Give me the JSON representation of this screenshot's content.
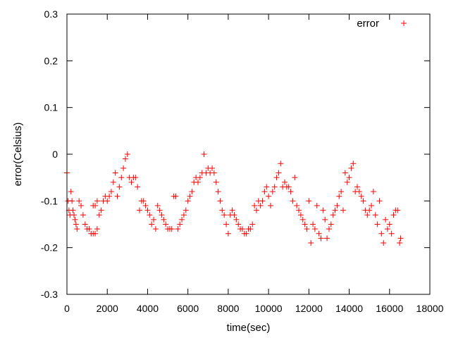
{
  "chart_data": {
    "type": "scatter",
    "title": "",
    "xlabel": "time(sec)",
    "ylabel": "error(Celsius)",
    "xlim": [
      0,
      18000
    ],
    "ylim": [
      -0.3,
      0.3
    ],
    "grid": false,
    "legend_position": "top-right",
    "x_ticks": [
      "0",
      "2000",
      "4000",
      "6000",
      "8000",
      "10000",
      "12000",
      "14000",
      "16000",
      "18000"
    ],
    "y_ticks": [
      "0.3",
      "0.2",
      "0.1",
      "0",
      "-0.1",
      "-0.2",
      "-0.3"
    ],
    "marker_color": "#ff0000",
    "series": [
      {
        "name": "error",
        "marker": "+",
        "points": [
          [
            0,
            -0.04
          ],
          [
            50,
            -0.1
          ],
          [
            100,
            -0.12
          ],
          [
            150,
            -0.13
          ],
          [
            200,
            -0.08
          ],
          [
            250,
            -0.1
          ],
          [
            300,
            -0.12
          ],
          [
            350,
            -0.13
          ],
          [
            400,
            -0.14
          ],
          [
            450,
            -0.15
          ],
          [
            500,
            -0.16
          ],
          [
            600,
            -0.1
          ],
          [
            700,
            -0.11
          ],
          [
            800,
            -0.13
          ],
          [
            900,
            -0.15
          ],
          [
            1000,
            -0.16
          ],
          [
            1100,
            -0.16
          ],
          [
            1200,
            -0.17
          ],
          [
            1300,
            -0.17
          ],
          [
            1400,
            -0.17
          ],
          [
            1500,
            -0.16
          ],
          [
            1300,
            -0.11
          ],
          [
            1400,
            -0.11
          ],
          [
            1500,
            -0.1
          ],
          [
            1600,
            -0.13
          ],
          [
            1700,
            -0.12
          ],
          [
            1800,
            -0.1
          ],
          [
            1900,
            -0.09
          ],
          [
            2000,
            -0.1
          ],
          [
            2100,
            -0.09
          ],
          [
            2200,
            -0.08
          ],
          [
            2300,
            -0.06
          ],
          [
            2400,
            -0.04
          ],
          [
            2500,
            -0.09
          ],
          [
            2600,
            -0.07
          ],
          [
            2700,
            -0.05
          ],
          [
            2800,
            -0.03
          ],
          [
            2900,
            -0.01
          ],
          [
            3000,
            0.0
          ],
          [
            3100,
            -0.05
          ],
          [
            3200,
            -0.06
          ],
          [
            3300,
            -0.05
          ],
          [
            3400,
            -0.05
          ],
          [
            3500,
            -0.07
          ],
          [
            3600,
            -0.12
          ],
          [
            3700,
            -0.1
          ],
          [
            3800,
            -0.1
          ],
          [
            3900,
            -0.11
          ],
          [
            4000,
            -0.12
          ],
          [
            4100,
            -0.13
          ],
          [
            4200,
            -0.15
          ],
          [
            4300,
            -0.14
          ],
          [
            4400,
            -0.16
          ],
          [
            4500,
            -0.11
          ],
          [
            4600,
            -0.12
          ],
          [
            4700,
            -0.13
          ],
          [
            4800,
            -0.14
          ],
          [
            4900,
            -0.15
          ],
          [
            5000,
            -0.16
          ],
          [
            5100,
            -0.16
          ],
          [
            5200,
            -0.16
          ],
          [
            5300,
            -0.09
          ],
          [
            5400,
            -0.09
          ],
          [
            5500,
            -0.16
          ],
          [
            5600,
            -0.15
          ],
          [
            5700,
            -0.14
          ],
          [
            5800,
            -0.13
          ],
          [
            5900,
            -0.12
          ],
          [
            6000,
            -0.1
          ],
          [
            6100,
            -0.09
          ],
          [
            6200,
            -0.08
          ],
          [
            6300,
            -0.06
          ],
          [
            6400,
            -0.05
          ],
          [
            6500,
            -0.06
          ],
          [
            6600,
            -0.05
          ],
          [
            6700,
            -0.04
          ],
          [
            6800,
            0.0
          ],
          [
            6900,
            -0.04
          ],
          [
            7000,
            -0.03
          ],
          [
            7100,
            -0.04
          ],
          [
            7200,
            -0.03
          ],
          [
            7300,
            -0.04
          ],
          [
            7400,
            -0.06
          ],
          [
            7500,
            -0.08
          ],
          [
            7600,
            -0.1
          ],
          [
            7700,
            -0.12
          ],
          [
            7800,
            -0.13
          ],
          [
            7900,
            -0.15
          ],
          [
            8000,
            -0.17
          ],
          [
            8100,
            -0.13
          ],
          [
            8200,
            -0.12
          ],
          [
            8300,
            -0.13
          ],
          [
            8400,
            -0.14
          ],
          [
            8500,
            -0.15
          ],
          [
            8600,
            -0.16
          ],
          [
            8700,
            -0.16
          ],
          [
            8800,
            -0.17
          ],
          [
            8900,
            -0.17
          ],
          [
            9000,
            -0.16
          ],
          [
            9100,
            -0.16
          ],
          [
            9200,
            -0.15
          ],
          [
            9300,
            -0.11
          ],
          [
            9400,
            -0.12
          ],
          [
            9500,
            -0.1
          ],
          [
            9600,
            -0.11
          ],
          [
            9700,
            -0.1
          ],
          [
            9800,
            -0.08
          ],
          [
            9900,
            -0.07
          ],
          [
            10000,
            -0.09
          ],
          [
            10100,
            -0.11
          ],
          [
            10200,
            -0.08
          ],
          [
            10300,
            -0.07
          ],
          [
            10400,
            -0.05
          ],
          [
            10500,
            -0.04
          ],
          [
            10600,
            -0.02
          ],
          [
            10700,
            -0.07
          ],
          [
            10800,
            -0.06
          ],
          [
            10900,
            -0.07
          ],
          [
            11000,
            -0.07
          ],
          [
            11100,
            -0.08
          ],
          [
            11200,
            -0.1
          ],
          [
            11300,
            -0.05
          ],
          [
            11400,
            -0.11
          ],
          [
            11500,
            -0.12
          ],
          [
            11600,
            -0.13
          ],
          [
            11700,
            -0.14
          ],
          [
            11800,
            -0.15
          ],
          [
            11900,
            -0.16
          ],
          [
            12000,
            -0.1
          ],
          [
            12100,
            -0.19
          ],
          [
            12200,
            -0.15
          ],
          [
            12300,
            -0.16
          ],
          [
            12400,
            -0.11
          ],
          [
            12500,
            -0.17
          ],
          [
            12600,
            -0.18
          ],
          [
            12700,
            -0.12
          ],
          [
            12800,
            -0.14
          ],
          [
            12900,
            -0.18
          ],
          [
            13000,
            -0.16
          ],
          [
            13100,
            -0.15
          ],
          [
            13200,
            -0.13
          ],
          [
            13300,
            -0.12
          ],
          [
            13400,
            -0.11
          ],
          [
            13500,
            -0.09
          ],
          [
            13600,
            -0.08
          ],
          [
            13700,
            -0.12
          ],
          [
            13800,
            -0.04
          ],
          [
            13900,
            -0.06
          ],
          [
            14000,
            -0.05
          ],
          [
            14100,
            -0.03
          ],
          [
            14200,
            -0.02
          ],
          [
            14300,
            -0.08
          ],
          [
            14400,
            -0.07
          ],
          [
            14500,
            -0.08
          ],
          [
            14600,
            -0.09
          ],
          [
            14700,
            -0.1
          ],
          [
            14800,
            -0.12
          ],
          [
            14900,
            -0.13
          ],
          [
            15000,
            -0.12
          ],
          [
            15100,
            -0.11
          ],
          [
            15200,
            -0.08
          ],
          [
            15300,
            -0.13
          ],
          [
            15400,
            -0.15
          ],
          [
            15500,
            -0.1
          ],
          [
            15600,
            -0.17
          ],
          [
            15700,
            -0.19
          ],
          [
            15800,
            -0.14
          ],
          [
            15900,
            -0.16
          ],
          [
            16000,
            -0.15
          ],
          [
            16100,
            -0.17
          ],
          [
            16200,
            -0.13
          ],
          [
            16300,
            -0.12
          ],
          [
            16400,
            -0.12
          ],
          [
            16500,
            -0.19
          ],
          [
            16550,
            -0.18
          ]
        ]
      }
    ]
  }
}
